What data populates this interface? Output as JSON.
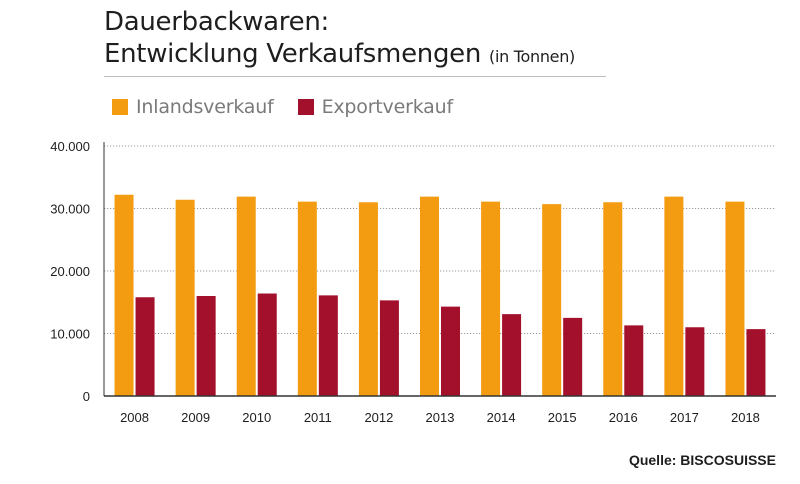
{
  "title": {
    "line1": "Dauerbackwaren:",
    "line2": "Entwicklung Verkaufsmengen",
    "unit": "(in Tonnen)"
  },
  "legend": [
    {
      "label": "Inlandsverkauf",
      "color": "#f39c12"
    },
    {
      "label": "Exportverkauf",
      "color": "#a3102c"
    }
  ],
  "source": "Quelle: BISCOSUISSE",
  "chart_data": {
    "type": "bar",
    "categories": [
      "2008",
      "2009",
      "2010",
      "2011",
      "2012",
      "2013",
      "2014",
      "2015",
      "2016",
      "2017",
      "2018"
    ],
    "series": [
      {
        "name": "Inlandsverkauf",
        "color": "#f39c12",
        "values": [
          32200,
          31400,
          31900,
          31100,
          31000,
          31900,
          31100,
          30700,
          31000,
          31900,
          31100
        ]
      },
      {
        "name": "Exportverkauf",
        "color": "#a3102c",
        "values": [
          15800,
          16000,
          16400,
          16100,
          15300,
          14300,
          13100,
          12500,
          11300,
          11000,
          10700
        ]
      }
    ],
    "yticks": [
      "0",
      "10.000",
      "20.000",
      "30.000",
      "40.000"
    ],
    "ylim": [
      0,
      40000
    ],
    "grid": true,
    "legend_position": "top-left"
  }
}
